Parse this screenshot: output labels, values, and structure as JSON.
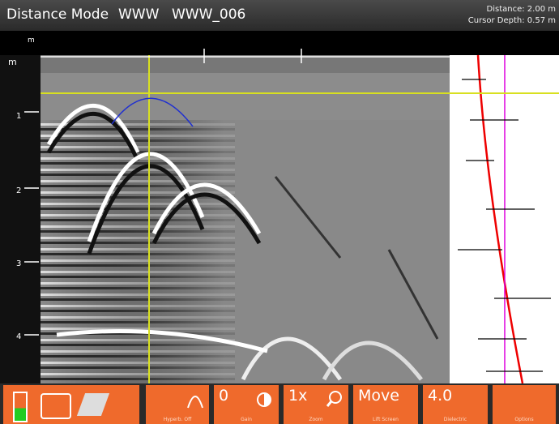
{
  "header": {
    "mode": "Distance Mode",
    "project": "WWW",
    "file": "WWW_006",
    "distance": "Distance: 2.00 m",
    "cursor_depth": "Cursor Depth: 0.57 m"
  },
  "ruler": {
    "distance_unit": "m",
    "depth_unit": "m",
    "depth_labels": [
      "1",
      "2",
      "3",
      "4"
    ]
  },
  "toolbar": [
    {
      "label": "Hyperb. Off"
    },
    {
      "value": "0",
      "label": "Gain"
    },
    {
      "value": "1x",
      "label": "Zoom"
    },
    {
      "value": "Move",
      "label": "Lift Screen"
    },
    {
      "value": "4.0",
      "label": "Dielectric"
    },
    {
      "label": "Options"
    }
  ]
}
